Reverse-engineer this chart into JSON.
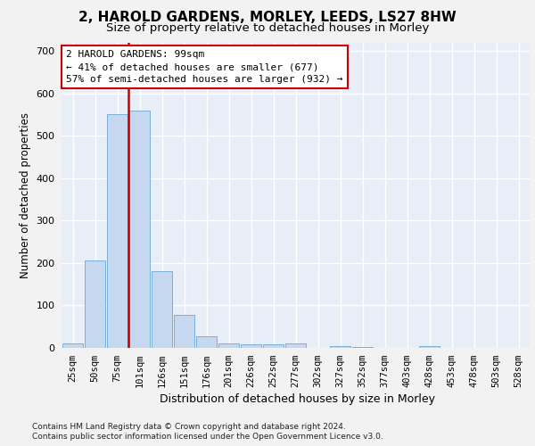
{
  "title": "2, HAROLD GARDENS, MORLEY, LEEDS, LS27 8HW",
  "subtitle": "Size of property relative to detached houses in Morley",
  "xlabel": "Distribution of detached houses by size in Morley",
  "ylabel": "Number of detached properties",
  "bar_labels": [
    "25sqm",
    "50sqm",
    "75sqm",
    "101sqm",
    "126sqm",
    "151sqm",
    "176sqm",
    "201sqm",
    "226sqm",
    "252sqm",
    "277sqm",
    "302sqm",
    "327sqm",
    "352sqm",
    "377sqm",
    "403sqm",
    "428sqm",
    "453sqm",
    "478sqm",
    "503sqm",
    "528sqm"
  ],
  "bar_values": [
    10,
    205,
    550,
    560,
    180,
    78,
    28,
    10,
    8,
    8,
    10,
    0,
    5,
    3,
    0,
    0,
    5,
    0,
    0,
    0,
    0
  ],
  "bar_color": "#c5d8f0",
  "bar_edge_color": "#7aafd4",
  "vline_color": "#cc0000",
  "vline_position": 2.5,
  "ylim_max": 720,
  "yticks": [
    0,
    100,
    200,
    300,
    400,
    500,
    600,
    700
  ],
  "annotation_line1": "2 HAROLD GARDENS: 99sqm",
  "annotation_line2": "← 41% of detached houses are smaller (677)",
  "annotation_line3": "57% of semi-detached houses are larger (932) →",
  "footer": "Contains HM Land Registry data © Crown copyright and database right 2024.\nContains public sector information licensed under the Open Government Licence v3.0.",
  "plot_bg": "#e8eef7",
  "fig_bg": "#f2f2f2",
  "grid_color": "#ffffff",
  "title_fontsize": 11,
  "subtitle_fontsize": 9.5,
  "ylabel_fontsize": 8.5,
  "xlabel_fontsize": 9,
  "tick_fontsize": 7.5,
  "ann_fontsize": 8,
  "footer_fontsize": 6.5
}
